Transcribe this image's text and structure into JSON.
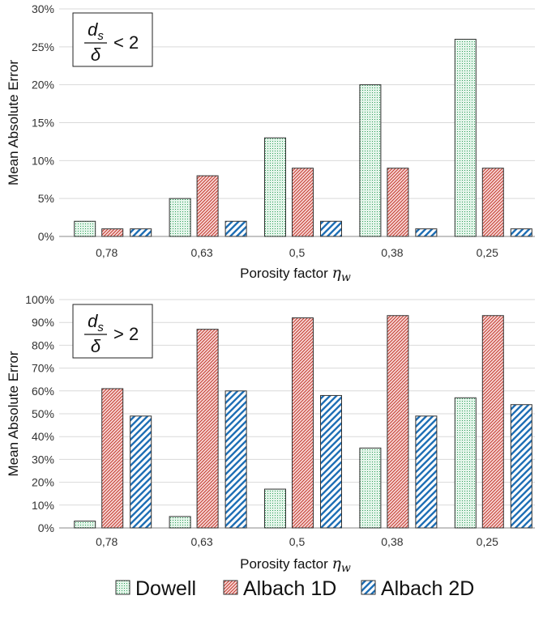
{
  "colors": {
    "dowell": "#2e9e5b",
    "dowell_fill": "#dff3e6",
    "albach1d": "#c0392b",
    "albach1d_fill": "#f6cfcf",
    "albach2d": "#1f6fb5",
    "albach2d_fill": "#ffffff",
    "grid": "#d9d9d9",
    "axis": "#888888"
  },
  "legend": [
    {
      "name": "Dowell",
      "key": "dowell"
    },
    {
      "name": "Albach 1D",
      "key": "albach1d"
    },
    {
      "name": "Albach 2D",
      "key": "albach2d"
    }
  ],
  "chart_data": [
    {
      "type": "bar",
      "ylabel": "Mean Absolute Error",
      "xlabel": "Porosity factor",
      "xlabel_symbol": "η",
      "xlabel_subscript": "w",
      "annotation": {
        "numerator": "d",
        "numerator_sub": "s",
        "denominator": "δ",
        "relation": "< 2"
      },
      "categories": [
        "0,78",
        "0,63",
        "0,5",
        "0,38",
        "0,25"
      ],
      "ylim": [
        0,
        30
      ],
      "yticks": [
        "0%",
        "5%",
        "10%",
        "15%",
        "20%",
        "25%",
        "30%"
      ],
      "grid": true,
      "legend_position": "bottom",
      "series": [
        {
          "name": "Dowell",
          "values": [
            2,
            5,
            13,
            20,
            26
          ]
        },
        {
          "name": "Albach 1D",
          "values": [
            1,
            8,
            9,
            9,
            9
          ]
        },
        {
          "name": "Albach 2D",
          "values": [
            1,
            2,
            2,
            1,
            1
          ]
        }
      ]
    },
    {
      "type": "bar",
      "ylabel": "Mean Absolute Error",
      "xlabel": "Porosity factor",
      "xlabel_symbol": "η",
      "xlabel_subscript": "w",
      "annotation": {
        "numerator": "d",
        "numerator_sub": "s",
        "denominator": "δ",
        "relation": "> 2"
      },
      "categories": [
        "0,78",
        "0,63",
        "0,5",
        "0,38",
        "0,25"
      ],
      "ylim": [
        0,
        100
      ],
      "yticks": [
        "0%",
        "10%",
        "20%",
        "30%",
        "40%",
        "50%",
        "60%",
        "70%",
        "80%",
        "90%",
        "100%"
      ],
      "grid": true,
      "legend_position": "bottom",
      "series": [
        {
          "name": "Dowell",
          "values": [
            3,
            5,
            17,
            35,
            57
          ]
        },
        {
          "name": "Albach 1D",
          "values": [
            61,
            87,
            92,
            93,
            93
          ]
        },
        {
          "name": "Albach 2D",
          "values": [
            49,
            60,
            58,
            49,
            54
          ]
        }
      ]
    }
  ]
}
